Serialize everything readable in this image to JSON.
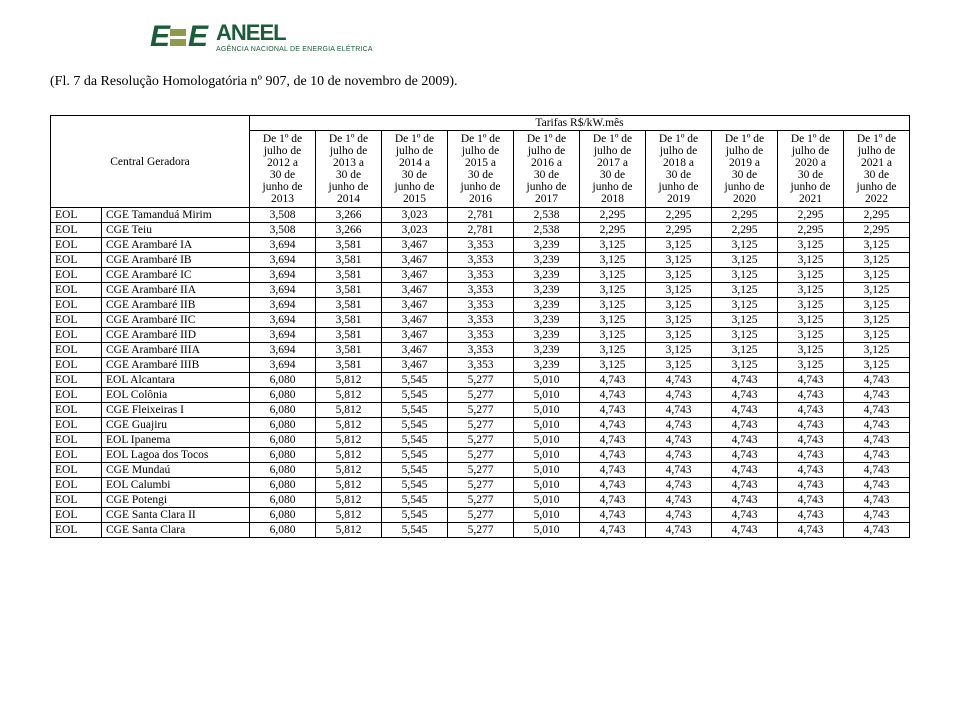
{
  "logo": {
    "letter": "E",
    "name": "ANEEL",
    "subtitle": "AGÊNCIA NACIONAL DE ENERGIA ELÉTRICA",
    "green": "#1a5d3a",
    "olive": "#8d9c4a"
  },
  "page_ref": "(Fl. 7 da Resolução Homologatória nº 907, de 10 de novembro de 2009).",
  "table": {
    "tarif_header": "Tarifas R$/kW.mês",
    "row_label": "Central Geradora",
    "period_lines": [
      "De 1º de",
      "julho de",
      "YEAR1 a",
      "30 de",
      "junho de",
      "YEAR2"
    ],
    "years": [
      2012,
      2013,
      2014,
      2015,
      2016,
      2017,
      2018,
      2019,
      2020,
      2021
    ],
    "rows": [
      {
        "code": "EOL",
        "name": "CGE Tamanduá Mirim",
        "v": [
          "3,508",
          "3,266",
          "3,023",
          "2,781",
          "2,538",
          "2,295",
          "2,295",
          "2,295",
          "2,295",
          "2,295"
        ]
      },
      {
        "code": "EOL",
        "name": "CGE Teiu",
        "v": [
          "3,508",
          "3,266",
          "3,023",
          "2,781",
          "2,538",
          "2,295",
          "2,295",
          "2,295",
          "2,295",
          "2,295"
        ]
      },
      {
        "code": "EOL",
        "name": "CGE Arambaré IA",
        "v": [
          "3,694",
          "3,581",
          "3,467",
          "3,353",
          "3,239",
          "3,125",
          "3,125",
          "3,125",
          "3,125",
          "3,125"
        ]
      },
      {
        "code": "EOL",
        "name": "CGE Arambaré IB",
        "v": [
          "3,694",
          "3,581",
          "3,467",
          "3,353",
          "3,239",
          "3,125",
          "3,125",
          "3,125",
          "3,125",
          "3,125"
        ]
      },
      {
        "code": "EOL",
        "name": "CGE Arambaré IC",
        "v": [
          "3,694",
          "3,581",
          "3,467",
          "3,353",
          "3,239",
          "3,125",
          "3,125",
          "3,125",
          "3,125",
          "3,125"
        ]
      },
      {
        "code": "EOL",
        "name": "CGE Arambaré IIA",
        "v": [
          "3,694",
          "3,581",
          "3,467",
          "3,353",
          "3,239",
          "3,125",
          "3,125",
          "3,125",
          "3,125",
          "3,125"
        ]
      },
      {
        "code": "EOL",
        "name": "CGE Arambaré IIB",
        "v": [
          "3,694",
          "3,581",
          "3,467",
          "3,353",
          "3,239",
          "3,125",
          "3,125",
          "3,125",
          "3,125",
          "3,125"
        ]
      },
      {
        "code": "EOL",
        "name": "CGE Arambaré IIC",
        "v": [
          "3,694",
          "3,581",
          "3,467",
          "3,353",
          "3,239",
          "3,125",
          "3,125",
          "3,125",
          "3,125",
          "3,125"
        ]
      },
      {
        "code": "EOL",
        "name": "CGE Arambaré IID",
        "v": [
          "3,694",
          "3,581",
          "3,467",
          "3,353",
          "3,239",
          "3,125",
          "3,125",
          "3,125",
          "3,125",
          "3,125"
        ]
      },
      {
        "code": "EOL",
        "name": "CGE Arambaré IIIA",
        "v": [
          "3,694",
          "3,581",
          "3,467",
          "3,353",
          "3,239",
          "3,125",
          "3,125",
          "3,125",
          "3,125",
          "3,125"
        ]
      },
      {
        "code": "EOL",
        "name": "CGE Arambaré IIIB",
        "v": [
          "3,694",
          "3,581",
          "3,467",
          "3,353",
          "3,239",
          "3,125",
          "3,125",
          "3,125",
          "3,125",
          "3,125"
        ]
      },
      {
        "code": "EOL",
        "name": "EOL Alcantara",
        "v": [
          "6,080",
          "5,812",
          "5,545",
          "5,277",
          "5,010",
          "4,743",
          "4,743",
          "4,743",
          "4,743",
          "4,743"
        ]
      },
      {
        "code": "EOL",
        "name": "EOL Colônia",
        "v": [
          "6,080",
          "5,812",
          "5,545",
          "5,277",
          "5,010",
          "4,743",
          "4,743",
          "4,743",
          "4,743",
          "4,743"
        ]
      },
      {
        "code": "EOL",
        "name": "CGE Fleixeiras I",
        "v": [
          "6,080",
          "5,812",
          "5,545",
          "5,277",
          "5,010",
          "4,743",
          "4,743",
          "4,743",
          "4,743",
          "4,743"
        ]
      },
      {
        "code": "EOL",
        "name": "CGE Guajiru",
        "v": [
          "6,080",
          "5,812",
          "5,545",
          "5,277",
          "5,010",
          "4,743",
          "4,743",
          "4,743",
          "4,743",
          "4,743"
        ]
      },
      {
        "code": "EOL",
        "name": "EOL Ipanema",
        "v": [
          "6,080",
          "5,812",
          "5,545",
          "5,277",
          "5,010",
          "4,743",
          "4,743",
          "4,743",
          "4,743",
          "4,743"
        ]
      },
      {
        "code": "EOL",
        "name": "EOL Lagoa dos Tocos",
        "v": [
          "6,080",
          "5,812",
          "5,545",
          "5,277",
          "5,010",
          "4,743",
          "4,743",
          "4,743",
          "4,743",
          "4,743"
        ]
      },
      {
        "code": "EOL",
        "name": "CGE Mundaú",
        "v": [
          "6,080",
          "5,812",
          "5,545",
          "5,277",
          "5,010",
          "4,743",
          "4,743",
          "4,743",
          "4,743",
          "4,743"
        ]
      },
      {
        "code": "EOL",
        "name": "EOL Calumbi",
        "v": [
          "6,080",
          "5,812",
          "5,545",
          "5,277",
          "5,010",
          "4,743",
          "4,743",
          "4,743",
          "4,743",
          "4,743"
        ]
      },
      {
        "code": "EOL",
        "name": "CGE Potengi",
        "v": [
          "6,080",
          "5,812",
          "5,545",
          "5,277",
          "5,010",
          "4,743",
          "4,743",
          "4,743",
          "4,743",
          "4,743"
        ]
      },
      {
        "code": "EOL",
        "name": "CGE Santa Clara II",
        "v": [
          "6,080",
          "5,812",
          "5,545",
          "5,277",
          "5,010",
          "4,743",
          "4,743",
          "4,743",
          "4,743",
          "4,743"
        ]
      },
      {
        "code": "EOL",
        "name": "CGE Santa Clara",
        "v": [
          "6,080",
          "5,812",
          "5,545",
          "5,277",
          "5,010",
          "4,743",
          "4,743",
          "4,743",
          "4,743",
          "4,743"
        ]
      }
    ]
  }
}
